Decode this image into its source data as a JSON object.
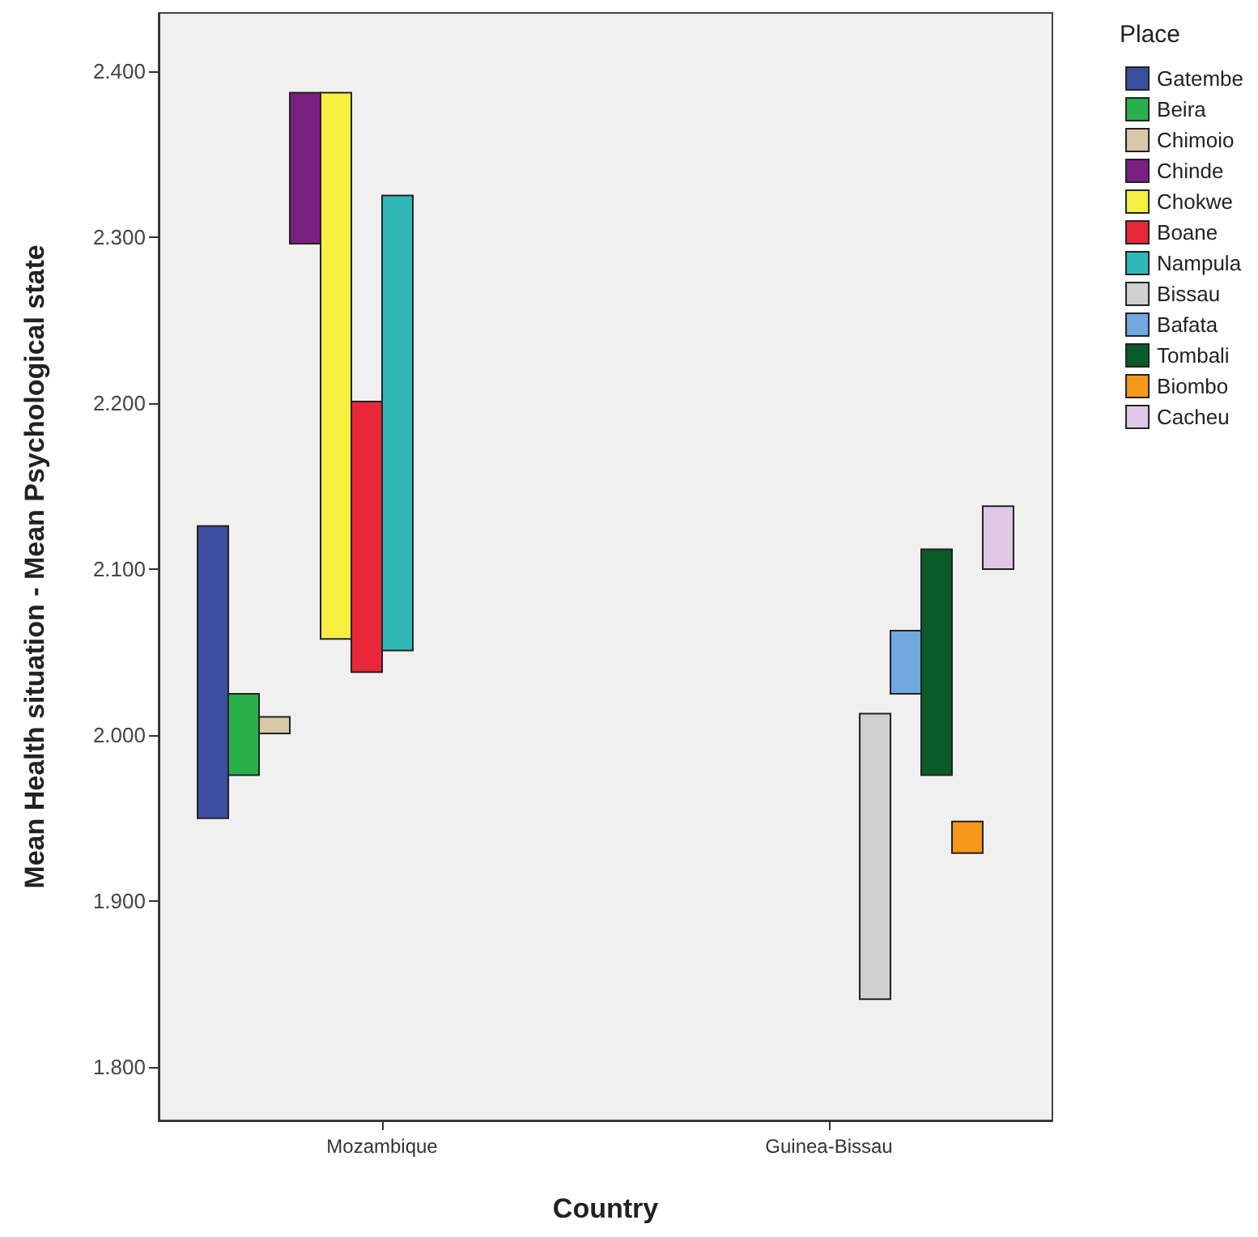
{
  "chart_data": {
    "type": "bar",
    "xlabel": "Country",
    "ylabel": "Mean Health situation - Mean Psychological state",
    "legend_title": "Place",
    "legend": "right",
    "grid": false,
    "categories": [
      "Mozambique",
      "Guinea-Bissau"
    ],
    "ylim": [
      1.768,
      2.435
    ],
    "yticks": [
      {
        "value": 1.8,
        "label": "1.800"
      },
      {
        "value": 1.9,
        "label": "1.900"
      },
      {
        "value": 2.0,
        "label": "2.000"
      },
      {
        "value": 2.1,
        "label": "2.100"
      },
      {
        "value": 2.2,
        "label": "2.200"
      },
      {
        "value": 2.3,
        "label": "2.300"
      },
      {
        "value": 2.4,
        "label": "2.400"
      }
    ],
    "series": [
      {
        "name": "Gatembe",
        "color": "#3a4fa0",
        "base": [
          1.95,
          null
        ],
        "values": [
          0.176,
          null
        ]
      },
      {
        "name": "Beira",
        "color": "#2ab04a",
        "base": [
          1.976,
          null
        ],
        "values": [
          0.049,
          null
        ]
      },
      {
        "name": "Chimoio",
        "color": "#d8c8a8",
        "base": [
          2.001,
          null
        ],
        "values": [
          0.01,
          null
        ]
      },
      {
        "name": "Chinde",
        "color": "#7a1f82",
        "base": [
          2.296,
          null
        ],
        "values": [
          0.091,
          null
        ]
      },
      {
        "name": "Chokwe",
        "color": "#f8f040",
        "base": [
          2.058,
          null
        ],
        "values": [
          0.329,
          null
        ]
      },
      {
        "name": "Boane",
        "color": "#e82838",
        "base": [
          2.038,
          null
        ],
        "values": [
          0.163,
          null
        ]
      },
      {
        "name": "Nampula",
        "color": "#30b8b8",
        "base": [
          2.051,
          null
        ],
        "values": [
          0.274,
          null
        ]
      },
      {
        "name": "Bissau",
        "color": "#d0d0d0",
        "base": [
          null,
          1.841
        ],
        "values": [
          null,
          0.172
        ]
      },
      {
        "name": "Bafata",
        "color": "#70a8e0",
        "base": [
          null,
          2.025
        ],
        "values": [
          null,
          0.038
        ]
      },
      {
        "name": "Tombali",
        "color": "#0a5a2a",
        "base": [
          null,
          1.976
        ],
        "values": [
          null,
          0.136
        ]
      },
      {
        "name": "Biombo",
        "color": "#f89818",
        "base": [
          null,
          1.929
        ],
        "values": [
          null,
          0.019
        ]
      },
      {
        "name": "Cacheu",
        "color": "#e0c8e8",
        "base": [
          null,
          2.1
        ],
        "values": [
          null,
          0.038
        ]
      }
    ]
  }
}
